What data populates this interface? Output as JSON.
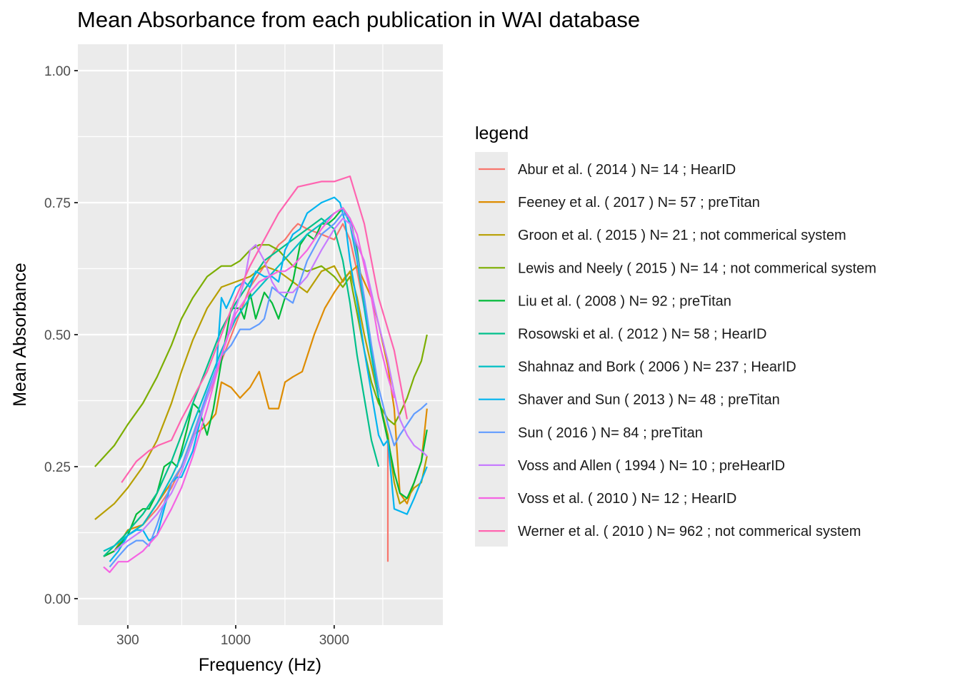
{
  "chart_data": {
    "type": "line",
    "title": "Mean Absorbance from each publication in WAI database",
    "xlabel": "Frequency (Hz)",
    "ylabel": "Mean Absorbance",
    "x_scale": "log10",
    "xlim": [
      172,
      10000
    ],
    "ylim": [
      -0.05,
      1.05
    ],
    "x_ticks": [
      300,
      1000,
      3000
    ],
    "x_tick_labels": [
      "300",
      "1000",
      "3000"
    ],
    "y_ticks": [
      0,
      0.25,
      0.5,
      0.75,
      1.0
    ],
    "y_tick_labels": [
      "0.00",
      "0.25",
      "0.50",
      "0.75",
      "1.00"
    ],
    "grid": true,
    "legend_title": "legend",
    "legend_position": "right",
    "series": [
      {
        "name": "Abur et al. ( 2014 ) N= 14 ; HearID",
        "color": "#F8766D",
        "x": [
          229,
          258,
          300,
          355,
          416,
          488,
          546,
          620,
          727,
          853,
          1000,
          1173,
          1375,
          1613,
          1733,
          1892,
          2000,
          2218,
          2601,
          3003,
          3304,
          3578,
          3874,
          4197,
          4545,
          4922,
          5460,
          5460
        ],
        "v": [
          0.08,
          0.09,
          0.12,
          0.14,
          0.17,
          0.21,
          0.25,
          0.31,
          0.38,
          0.45,
          0.52,
          0.59,
          0.63,
          0.67,
          0.68,
          0.7,
          0.71,
          0.7,
          0.69,
          0.68,
          0.71,
          0.68,
          0.62,
          0.55,
          0.47,
          0.38,
          0.3,
          0.07
        ]
      },
      {
        "name": "Feeney et al. ( 2017 ) N= 57 ; preTitan",
        "color": "#DE8C00",
        "x": [
          229,
          258,
          300,
          355,
          416,
          488,
          546,
          620,
          680,
          727,
          800,
          853,
          950,
          1050,
          1173,
          1300,
          1450,
          1613,
          1733,
          1892,
          2100,
          2400,
          2700,
          3003,
          3400,
          3874,
          4197,
          4545,
          4922,
          5460,
          5860,
          6240,
          6760,
          7320,
          7930,
          8444
        ],
        "v": [
          0.08,
          0.09,
          0.13,
          0.14,
          0.18,
          0.22,
          0.25,
          0.31,
          0.32,
          0.33,
          0.35,
          0.41,
          0.4,
          0.38,
          0.4,
          0.43,
          0.36,
          0.36,
          0.41,
          0.42,
          0.43,
          0.5,
          0.55,
          0.58,
          0.61,
          0.63,
          0.6,
          0.57,
          0.52,
          0.44,
          0.36,
          0.2,
          0.18,
          0.22,
          0.26,
          0.36
        ]
      },
      {
        "name": "Groon et al. ( 2015 ) N= 21 ; not commerical system",
        "color": "#B79F00",
        "x": [
          208,
          258,
          300,
          355,
          416,
          488,
          546,
          620,
          727,
          853,
          1000,
          1173,
          1375,
          1613,
          1892,
          2218,
          2601,
          3003,
          3304,
          3578,
          3874,
          4197,
          4545,
          4922,
          5460,
          5860,
          6240,
          6760,
          7320,
          7930,
          8444
        ],
        "v": [
          0.15,
          0.18,
          0.21,
          0.25,
          0.3,
          0.37,
          0.43,
          0.49,
          0.55,
          0.59,
          0.6,
          0.61,
          0.63,
          0.62,
          0.6,
          0.58,
          0.62,
          0.63,
          0.6,
          0.62,
          0.57,
          0.5,
          0.44,
          0.38,
          0.31,
          0.22,
          0.18,
          0.19,
          0.21,
          0.22,
          0.27
        ]
      },
      {
        "name": "Lewis and Neely ( 2015 ) N= 14 ; not commerical system",
        "color": "#7CAE00",
        "x": [
          208,
          258,
          300,
          355,
          416,
          488,
          546,
          620,
          727,
          853,
          950,
          1050,
          1173,
          1300,
          1450,
          1613,
          1892,
          2218,
          2601,
          3003,
          3304,
          3578,
          3874,
          4197,
          4545,
          4922,
          5460,
          5860,
          6240,
          6760,
          7320,
          7930,
          8444
        ],
        "v": [
          0.25,
          0.29,
          0.33,
          0.37,
          0.42,
          0.48,
          0.53,
          0.57,
          0.61,
          0.63,
          0.63,
          0.64,
          0.66,
          0.67,
          0.67,
          0.66,
          0.63,
          0.62,
          0.63,
          0.61,
          0.59,
          0.61,
          0.54,
          0.47,
          0.41,
          0.37,
          0.34,
          0.33,
          0.35,
          0.38,
          0.42,
          0.45,
          0.5
        ]
      },
      {
        "name": "Liu et al. ( 2008 ) N= 92 ; preTitan",
        "color": "#00BA38",
        "x": [
          229,
          258,
          300,
          330,
          355,
          380,
          416,
          450,
          488,
          520,
          546,
          580,
          620,
          660,
          700,
          727,
          780,
          853,
          950,
          1050,
          1100,
          1173,
          1250,
          1375,
          1500,
          1613,
          1733,
          1892,
          2050,
          2218,
          2400,
          2601,
          2800,
          3003,
          3304,
          3578,
          3874,
          4197,
          4545,
          4922,
          5460,
          5860,
          6240,
          6760,
          7320,
          7930,
          8444
        ],
        "v": [
          0.08,
          0.09,
          0.12,
          0.16,
          0.17,
          0.17,
          0.2,
          0.25,
          0.26,
          0.25,
          0.28,
          0.32,
          0.37,
          0.36,
          0.33,
          0.31,
          0.36,
          0.45,
          0.55,
          0.55,
          0.53,
          0.58,
          0.53,
          0.58,
          0.56,
          0.53,
          0.57,
          0.6,
          0.67,
          0.69,
          0.68,
          0.71,
          0.71,
          0.72,
          0.74,
          0.72,
          0.66,
          0.56,
          0.47,
          0.38,
          0.3,
          0.24,
          0.2,
          0.19,
          0.22,
          0.26,
          0.32
        ]
      },
      {
        "name": "Rosowski et al. ( 2012 ) N= 58 ; HearID",
        "color": "#00C08B",
        "x": [
          229,
          258,
          290,
          320,
          355,
          416,
          488,
          546,
          620,
          727,
          853,
          1000,
          1173,
          1375,
          1613,
          1892,
          2218,
          2601,
          3003,
          3304,
          3578,
          3874,
          4197,
          4545,
          4922
        ],
        "v": [
          0.08,
          0.1,
          0.12,
          0.14,
          0.16,
          0.2,
          0.26,
          0.31,
          0.37,
          0.44,
          0.51,
          0.56,
          0.6,
          0.64,
          0.66,
          0.68,
          0.7,
          0.72,
          0.7,
          0.64,
          0.56,
          0.46,
          0.38,
          0.3,
          0.25
        ]
      },
      {
        "name": "Shahnaz and Bork ( 2006 ) N= 237 ; HearID",
        "color": "#00BFC4",
        "x": [
          229,
          258,
          300,
          355,
          416,
          488,
          546,
          620,
          727,
          853,
          1000,
          1173,
          1375,
          1613,
          1892,
          2218,
          2601,
          3003,
          3304,
          3578,
          3874,
          4197,
          4545,
          4922
        ],
        "v": [
          0.09,
          0.1,
          0.12,
          0.14,
          0.18,
          0.23,
          0.27,
          0.33,
          0.4,
          0.47,
          0.53,
          0.57,
          0.6,
          0.63,
          0.66,
          0.69,
          0.71,
          0.73,
          0.74,
          0.71,
          0.64,
          0.55,
          0.46,
          0.38
        ]
      },
      {
        "name": "Shaver and Sun ( 2013 ) N= 48 ; preTitan",
        "color": "#00B4F0",
        "x": [
          245,
          270,
          300,
          330,
          355,
          380,
          416,
          450,
          488,
          520,
          546,
          620,
          727,
          800,
          853,
          900,
          950,
          1000,
          1100,
          1173,
          1250,
          1375,
          1500,
          1613,
          1733,
          1892,
          2050,
          2218,
          2601,
          3003,
          3200,
          3400,
          3578,
          3874,
          4197,
          4545,
          4922,
          5200,
          5460,
          5860,
          6760,
          7320,
          8444
        ],
        "v": [
          0.07,
          0.09,
          0.12,
          0.13,
          0.13,
          0.11,
          0.12,
          0.17,
          0.22,
          0.23,
          0.23,
          0.28,
          0.39,
          0.42,
          0.57,
          0.55,
          0.57,
          0.59,
          0.6,
          0.59,
          0.62,
          0.61,
          0.61,
          0.6,
          0.66,
          0.69,
          0.7,
          0.73,
          0.75,
          0.76,
          0.75,
          0.71,
          0.64,
          0.56,
          0.47,
          0.39,
          0.31,
          0.29,
          0.3,
          0.17,
          0.16,
          0.19,
          0.25
        ]
      },
      {
        "name": "Sun ( 2016 ) N= 84 ; preTitan",
        "color": "#619CFF",
        "x": [
          245,
          270,
          300,
          330,
          355,
          380,
          416,
          450,
          488,
          546,
          620,
          727,
          853,
          950,
          1050,
          1173,
          1300,
          1375,
          1500,
          1613,
          1733,
          1892,
          2218,
          2601,
          3003,
          3304,
          3578,
          3874,
          4197,
          4545,
          4922,
          5460,
          5860,
          6240,
          6760,
          7320,
          7930,
          8444
        ],
        "v": [
          0.06,
          0.08,
          0.1,
          0.11,
          0.11,
          0.1,
          0.14,
          0.18,
          0.22,
          0.25,
          0.31,
          0.39,
          0.46,
          0.48,
          0.51,
          0.51,
          0.52,
          0.53,
          0.59,
          0.58,
          0.57,
          0.56,
          0.64,
          0.69,
          0.71,
          0.73,
          0.72,
          0.65,
          0.57,
          0.48,
          0.4,
          0.33,
          0.29,
          0.31,
          0.33,
          0.35,
          0.36,
          0.37
        ]
      },
      {
        "name": "Voss and Allen ( 1994 ) N= 10 ; preHearID",
        "color": "#C77CFF",
        "x": [
          258,
          300,
          355,
          416,
          488,
          546,
          620,
          727,
          853,
          1000,
          1100,
          1173,
          1250,
          1375,
          1500,
          1613,
          1892,
          2218,
          2601,
          3003,
          3304,
          3578,
          3874,
          4197,
          4545,
          4922,
          5460,
          5860,
          6240,
          6760,
          7320,
          7930,
          8444
        ],
        "v": [
          0.09,
          0.11,
          0.13,
          0.16,
          0.2,
          0.24,
          0.3,
          0.38,
          0.46,
          0.55,
          0.6,
          0.66,
          0.67,
          0.64,
          0.6,
          0.58,
          0.58,
          0.61,
          0.66,
          0.7,
          0.72,
          0.71,
          0.67,
          0.64,
          0.58,
          0.52,
          0.45,
          0.39,
          0.34,
          0.31,
          0.29,
          0.28,
          0.27
        ]
      },
      {
        "name": "Voss et al. ( 2010 ) N= 12 ; HearID",
        "color": "#F564E3",
        "x": [
          229,
          245,
          270,
          300,
          355,
          416,
          488,
          546,
          620,
          727,
          853,
          1000,
          1173,
          1300,
          1450,
          1613,
          1733,
          1892,
          2218,
          2601,
          3003,
          3304,
          3578,
          3874,
          4197,
          4545,
          4922,
          5460,
          5860
        ],
        "v": [
          0.06,
          0.05,
          0.07,
          0.07,
          0.09,
          0.12,
          0.17,
          0.21,
          0.27,
          0.36,
          0.46,
          0.54,
          0.58,
          0.6,
          0.61,
          0.62,
          0.62,
          0.63,
          0.66,
          0.7,
          0.73,
          0.74,
          0.72,
          0.69,
          0.63,
          0.57,
          0.49,
          0.42,
          0.38
        ]
      },
      {
        "name": "Werner et al. ( 2010 ) N= 962 ; not commerical system",
        "color": "#FF64B0",
        "x": [
          280,
          330,
          380,
          420,
          488,
          546,
          620,
          727,
          853,
          1000,
          1173,
          1375,
          1613,
          2000,
          2601,
          3003,
          3578,
          4197,
          4922,
          5860,
          6760
        ],
        "v": [
          0.22,
          0.26,
          0.28,
          0.29,
          0.3,
          0.34,
          0.38,
          0.43,
          0.5,
          0.57,
          0.63,
          0.68,
          0.73,
          0.78,
          0.79,
          0.79,
          0.8,
          0.71,
          0.57,
          0.47,
          0.34
        ]
      }
    ]
  }
}
